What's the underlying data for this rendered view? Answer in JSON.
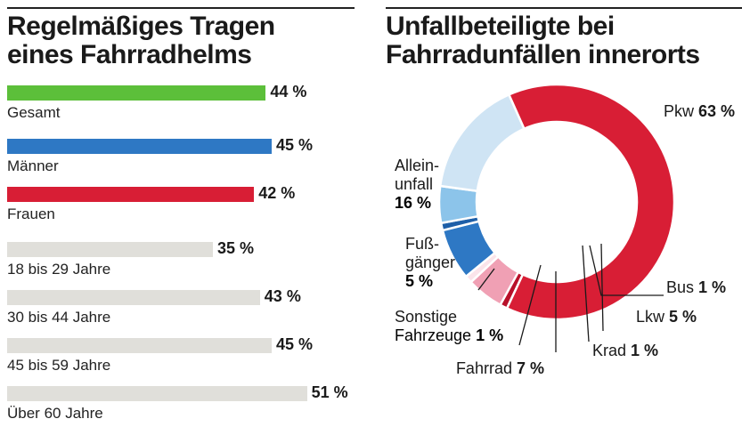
{
  "chart_data": [
    {
      "type": "bar",
      "orientation": "horizontal",
      "title": "Regelmäßiges Tragen\neines Fahrradhelms",
      "categories": [
        "Gesamt",
        "Männer",
        "Frauen",
        "18 bis 29 Jahre",
        "30 bis 44 Jahre",
        "45 bis 59 Jahre",
        "Über 60 Jahre"
      ],
      "values": [
        44,
        45,
        42,
        35,
        43,
        45,
        51
      ],
      "value_labels": [
        "44 %",
        "45 %",
        "42 %",
        "35 %",
        "43 %",
        "45 %",
        "51 %"
      ],
      "colors": [
        "#5cbf3a",
        "#2e78c4",
        "#d81e35",
        "#e0dfda",
        "#e0dfda",
        "#e0dfda",
        "#e0dfda"
      ],
      "unit": "%"
    },
    {
      "type": "pie",
      "style": "donut",
      "title": "Unfallbeteiligte bei\nFahrradunfällen innerorts",
      "slices": [
        {
          "label": "Pkw",
          "value": 63,
          "value_label": "63 %",
          "color": "#d81e35"
        },
        {
          "label": "Bus",
          "value": 1,
          "value_label": "1 %",
          "color": "#b8102a"
        },
        {
          "label": "Lkw",
          "value": 5,
          "value_label": "5 %",
          "color": "#f0a0b4"
        },
        {
          "label": "Krad",
          "value": 1,
          "value_label": "1 %",
          "color": "#fbe4ea"
        },
        {
          "label": "Fahrrad",
          "value": 7,
          "value_label": "7 %",
          "color": "#2e78c4"
        },
        {
          "label": "Sonstige Fahrzeuge",
          "value": 1,
          "value_label": "1 %",
          "color": "#1e5fa8"
        },
        {
          "label": "Fußgänger",
          "value": 5,
          "value_label": "5 %",
          "color": "#8cc4ea"
        },
        {
          "label": "Alleinunfall",
          "value": 16,
          "value_label": "16 %",
          "color": "#cfe4f4"
        }
      ],
      "unit": "%"
    }
  ]
}
